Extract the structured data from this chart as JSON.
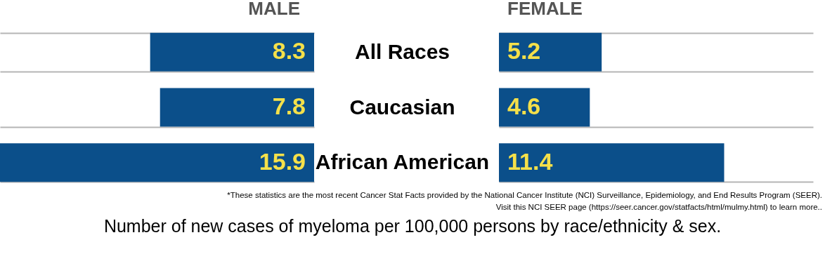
{
  "chart_data": [
    {
      "type": "bar",
      "orientation": "horizontal",
      "title": "MALE",
      "categories": [
        null,
        null,
        null
      ],
      "values": [
        8.3,
        7.8,
        15.9
      ],
      "color": "#0b4f8a",
      "data_labels": true,
      "grid": "y",
      "tick_labels": false
    },
    {
      "type": "bar",
      "orientation": "horizontal",
      "title": "FEMALE",
      "categories": [
        "All Races",
        "Caucasian",
        "African American"
      ],
      "values": [
        5.2,
        4.6,
        11.4
      ],
      "color": "#0b4f8a",
      "data_labels": true,
      "grid": "y",
      "tick_labels": "y",
      "annotations": [
        "*These statistics are the most recent Cancer Stat Facts provided by the National Cancer Institute (NCI) Surveillance, Epidemiology, and End Results Program (SEER).",
        "Visit this NCI SEER page (https://seer.cancer.gov/statfacts/html/mulmy.html) to learn more..",
        "Number of new cases of myeloma per 100,000 persons by race/ethnicity & sex."
      ]
    }
  ]
}
